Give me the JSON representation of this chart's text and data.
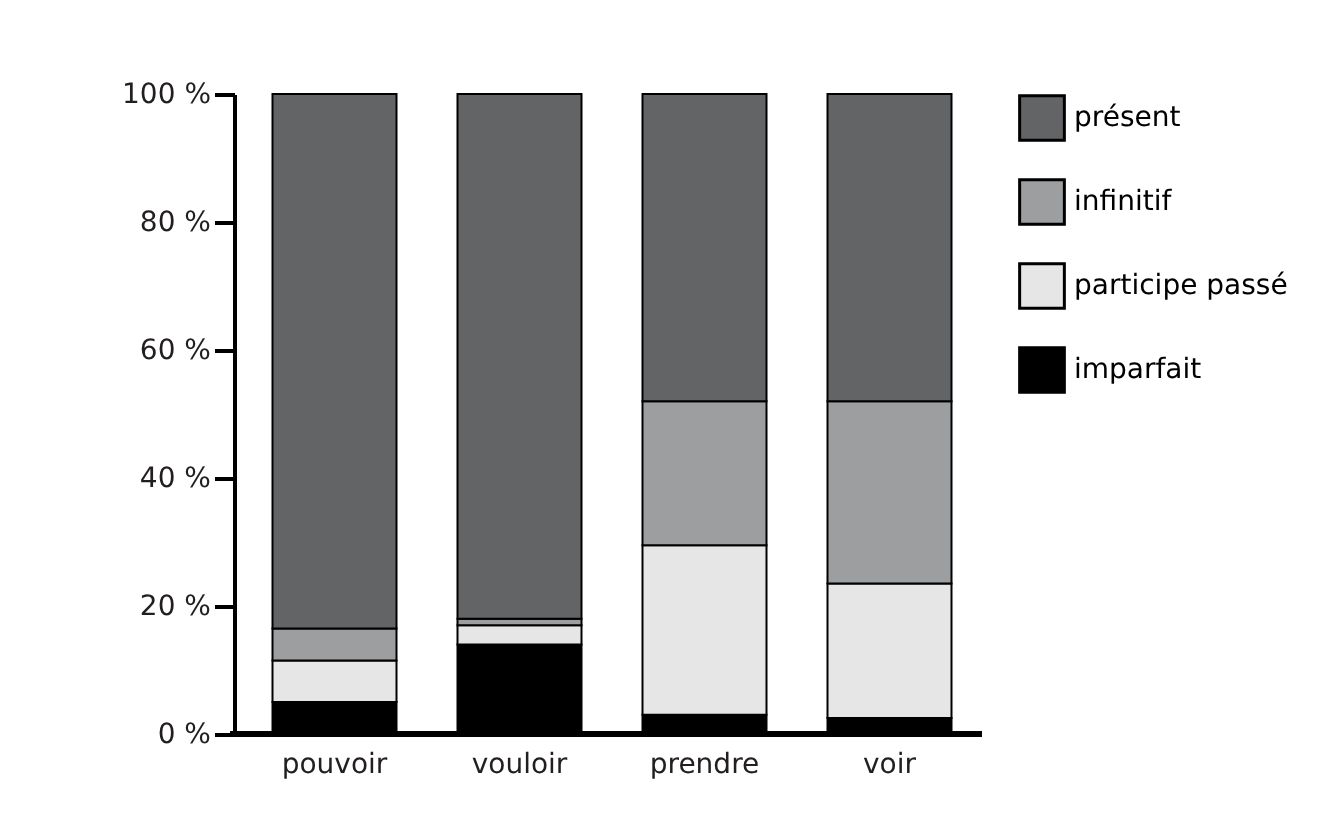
{
  "chart_data": {
    "type": "bar",
    "stacked": true,
    "categories": [
      "pouvoir",
      "vouloir",
      "prendre",
      "voir"
    ],
    "series": [
      {
        "name": "imparfait",
        "color": "#000000",
        "values": [
          5,
          14,
          3,
          2.5
        ]
      },
      {
        "name": "participe passé",
        "color": "#e6e6e6",
        "values": [
          6.5,
          3,
          26.5,
          21
        ]
      },
      {
        "name": "infinitif",
        "color": "#9d9ea0",
        "values": [
          5,
          1,
          22.5,
          28.5
        ]
      },
      {
        "name": "présent",
        "color": "#636466",
        "values": [
          83.5,
          82,
          48,
          48
        ]
      }
    ],
    "ylim": [
      0,
      100
    ],
    "yticks": [
      {
        "value": 0,
        "label": "0 %"
      },
      {
        "value": 20,
        "label": "20 %"
      },
      {
        "value": 40,
        "label": "40 %"
      },
      {
        "value": 60,
        "label": "60 %"
      },
      {
        "value": 80,
        "label": "80 %"
      },
      {
        "value": 100,
        "label": "100 %"
      }
    ],
    "grid": false,
    "legend": "right"
  }
}
